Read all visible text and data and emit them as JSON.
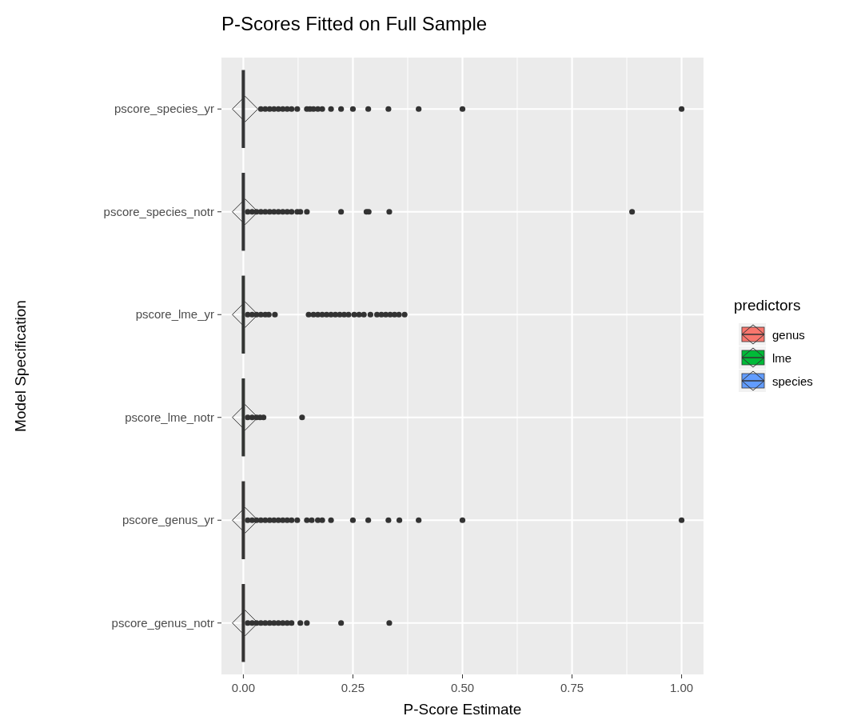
{
  "chart_data": {
    "type": "box",
    "title": "P-Scores Fitted on Full Sample",
    "xlabel": "P-Score Estimate",
    "ylabel": "Model Specification",
    "legend_title": "predictors",
    "orientation": "horizontal",
    "categories": [
      "pscore_species_yr",
      "pscore_species_notr",
      "pscore_lme_yr",
      "pscore_lme_notr",
      "pscore_genus_yr",
      "pscore_genus_notr"
    ],
    "xlim": [
      -0.05,
      1.05
    ],
    "xticks": [
      {
        "value": 0,
        "label": "0.00"
      },
      {
        "value": 0.25,
        "label": "0.25"
      },
      {
        "value": 0.5,
        "label": "0.50"
      },
      {
        "value": 0.75,
        "label": "0.75"
      },
      {
        "value": 1,
        "label": "1.00"
      }
    ],
    "grid": true,
    "legend": "right",
    "series": [
      {
        "name": "genus",
        "color": "#f8766d",
        "boxes": [
          null,
          null,
          null,
          null,
          {
            "low": 0,
            "q1": 0,
            "median": 0,
            "q3": 0,
            "high": 0,
            "mean": 0.004,
            "outliers": [
              0.01,
              0.02,
              0.03,
              0.04,
              0.05,
              0.06,
              0.07,
              0.08,
              0.09,
              0.1,
              0.11,
              0.123,
              0.145,
              0.156,
              0.17,
              0.18,
              0.2,
              0.25,
              0.285,
              0.331,
              0.356,
              0.4,
              0.5,
              1.0
            ]
          },
          {
            "low": 0,
            "q1": 0,
            "median": 0,
            "q3": 0,
            "high": 0,
            "mean": 0.004,
            "outliers": [
              0.01,
              0.02,
              0.03,
              0.04,
              0.05,
              0.06,
              0.07,
              0.08,
              0.09,
              0.1,
              0.11,
              0.13,
              0.145,
              0.223,
              0.333
            ]
          }
        ]
      },
      {
        "name": "lme",
        "color": "#00ba38",
        "boxes": [
          null,
          null,
          {
            "low": 0,
            "q1": 0,
            "median": 0,
            "q3": 0,
            "high": 0,
            "mean": 0.004,
            "outliers": [
              0.01,
              0.02,
              0.03,
              0.04,
              0.05,
              0.058,
              0.072,
              0.149,
              0.16,
              0.17,
              0.18,
              0.19,
              0.2,
              0.21,
              0.22,
              0.23,
              0.24,
              0.253,
              0.264,
              0.275,
              0.29,
              0.305,
              0.315,
              0.325,
              0.335,
              0.345,
              0.355,
              0.368
            ]
          },
          {
            "low": 0,
            "q1": 0,
            "median": 0,
            "q3": 0,
            "high": 0,
            "mean": 0.004,
            "outliers": [
              0.01,
              0.02,
              0.03,
              0.038,
              0.046,
              0.134
            ]
          },
          null,
          null
        ]
      },
      {
        "name": "species",
        "color": "#619cff",
        "boxes": [
          {
            "low": 0,
            "q1": 0,
            "median": 0,
            "q3": 0,
            "high": 0,
            "mean": 0.004,
            "outliers": [
              0.04,
              0.05,
              0.06,
              0.07,
              0.08,
              0.09,
              0.1,
              0.11,
              0.123,
              0.145,
              0.152,
              0.16,
              0.17,
              0.18,
              0.2,
              0.223,
              0.25,
              0.285,
              0.331,
              0.4,
              0.5,
              1.0
            ]
          },
          {
            "low": 0,
            "q1": 0,
            "median": 0,
            "q3": 0,
            "high": 0,
            "mean": 0.004,
            "outliers": [
              0.01,
              0.02,
              0.03,
              0.04,
              0.05,
              0.06,
              0.07,
              0.08,
              0.09,
              0.1,
              0.11,
              0.123,
              0.13,
              0.145,
              0.223,
              0.281,
              0.286,
              0.333,
              0.887
            ]
          },
          null,
          null,
          null,
          null
        ]
      }
    ]
  }
}
